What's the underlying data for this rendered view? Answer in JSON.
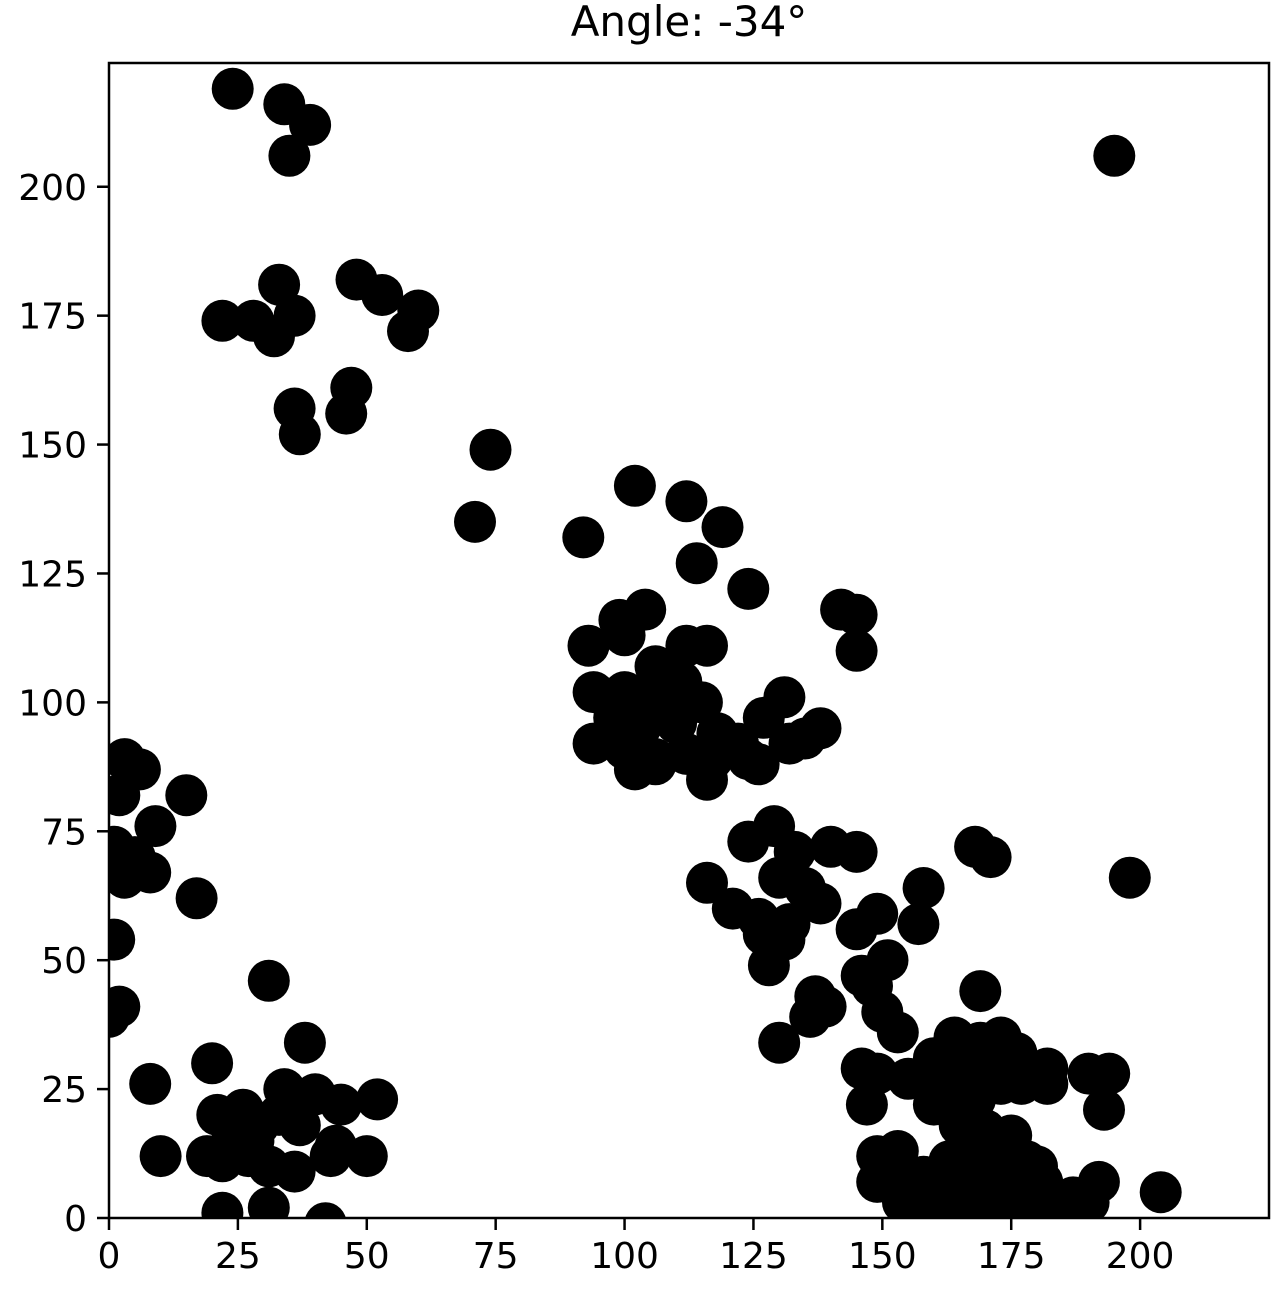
{
  "chart_data": {
    "type": "scatter",
    "title": "Angle: -34°",
    "xlabel": "",
    "ylabel": "",
    "xlim": [
      0,
      225
    ],
    "ylim": [
      0,
      224
    ],
    "xticks": [
      0,
      25,
      50,
      75,
      100,
      125,
      150,
      175,
      200
    ],
    "yticks": [
      0,
      25,
      50,
      75,
      100,
      125,
      150,
      175,
      200
    ],
    "grid": false,
    "legend": "none",
    "marker_color": "#000000",
    "points": [
      [
        24,
        219
      ],
      [
        34,
        216
      ],
      [
        39,
        212
      ],
      [
        35,
        206
      ],
      [
        195,
        206
      ],
      [
        48,
        182
      ],
      [
        33,
        181
      ],
      [
        53,
        179
      ],
      [
        60,
        176
      ],
      [
        22,
        174
      ],
      [
        28,
        174
      ],
      [
        36,
        175
      ],
      [
        32,
        171
      ],
      [
        58,
        172
      ],
      [
        47,
        161
      ],
      [
        36,
        157
      ],
      [
        46,
        156
      ],
      [
        37,
        152
      ],
      [
        74,
        149
      ],
      [
        71,
        135
      ],
      [
        102,
        142
      ],
      [
        112,
        139
      ],
      [
        119,
        134
      ],
      [
        92,
        132
      ],
      [
        114,
        127
      ],
      [
        124,
        122
      ],
      [
        104,
        118
      ],
      [
        99,
        116
      ],
      [
        142,
        118
      ],
      [
        145,
        117
      ],
      [
        93,
        111
      ],
      [
        100,
        113
      ],
      [
        112,
        111
      ],
      [
        116,
        111
      ],
      [
        145,
        110
      ],
      [
        106,
        107
      ],
      [
        111,
        104
      ],
      [
        94,
        102
      ],
      [
        100,
        102
      ],
      [
        104,
        101
      ],
      [
        108,
        98
      ],
      [
        115,
        100
      ],
      [
        131,
        101
      ],
      [
        98,
        97
      ],
      [
        103,
        95
      ],
      [
        110,
        96
      ],
      [
        118,
        94
      ],
      [
        122,
        92
      ],
      [
        127,
        97
      ],
      [
        138,
        95
      ],
      [
        135,
        93
      ],
      [
        132,
        92
      ],
      [
        94,
        92
      ],
      [
        100,
        91
      ],
      [
        106,
        89
      ],
      [
        112,
        90
      ],
      [
        117,
        89
      ],
      [
        124,
        89
      ],
      [
        126,
        88
      ],
      [
        102,
        87
      ],
      [
        106,
        88
      ],
      [
        116,
        85
      ],
      [
        3,
        89
      ],
      [
        6,
        87
      ],
      [
        2,
        82
      ],
      [
        15,
        82
      ],
      [
        9,
        76
      ],
      [
        1,
        72
      ],
      [
        5,
        70
      ],
      [
        8,
        67
      ],
      [
        3,
        66
      ],
      [
        17,
        62
      ],
      [
        129,
        76
      ],
      [
        124,
        73
      ],
      [
        133,
        71
      ],
      [
        140,
        72
      ],
      [
        145,
        71
      ],
      [
        168,
        72
      ],
      [
        171,
        70
      ],
      [
        198,
        66
      ],
      [
        116,
        65
      ],
      [
        130,
        66
      ],
      [
        135,
        64
      ],
      [
        158,
        64
      ],
      [
        121,
        60
      ],
      [
        138,
        61
      ],
      [
        126,
        58
      ],
      [
        132,
        57
      ],
      [
        149,
        59
      ],
      [
        145,
        56
      ],
      [
        127,
        55
      ],
      [
        131,
        54
      ],
      [
        157,
        57
      ],
      [
        1,
        54
      ],
      [
        128,
        49
      ],
      [
        146,
        47
      ],
      [
        151,
        50
      ],
      [
        148,
        45
      ],
      [
        150,
        40
      ],
      [
        169,
        44
      ],
      [
        137,
        43
      ],
      [
        139,
        41
      ],
      [
        136,
        39
      ],
      [
        153,
        36
      ],
      [
        2,
        41
      ],
      [
        0,
        39
      ],
      [
        31,
        46
      ],
      [
        38,
        34
      ],
      [
        130,
        34
      ],
      [
        164,
        35
      ],
      [
        169,
        34
      ],
      [
        173,
        35
      ],
      [
        176,
        32
      ],
      [
        160,
        31
      ],
      [
        166,
        30
      ],
      [
        170,
        29
      ],
      [
        182,
        29
      ],
      [
        146,
        29
      ],
      [
        149,
        28
      ],
      [
        155,
        27
      ],
      [
        162,
        28
      ],
      [
        168,
        27
      ],
      [
        173,
        26
      ],
      [
        177,
        26
      ],
      [
        182,
        26
      ],
      [
        190,
        28
      ],
      [
        194,
        28
      ],
      [
        8,
        26
      ],
      [
        20,
        30
      ],
      [
        34,
        25
      ],
      [
        40,
        24
      ],
      [
        45,
        22
      ],
      [
        52,
        23
      ],
      [
        147,
        22
      ],
      [
        160,
        22
      ],
      [
        164,
        21
      ],
      [
        168,
        23
      ],
      [
        193,
        21
      ],
      [
        21,
        20
      ],
      [
        26,
        21
      ],
      [
        29,
        18
      ],
      [
        33,
        20
      ],
      [
        37,
        18
      ],
      [
        24,
        16
      ],
      [
        28,
        15
      ],
      [
        44,
        14
      ],
      [
        43,
        12
      ],
      [
        50,
        12
      ],
      [
        10,
        12
      ],
      [
        19,
        12
      ],
      [
        22,
        11
      ],
      [
        27,
        12
      ],
      [
        31,
        10
      ],
      [
        36,
        9
      ],
      [
        165,
        18
      ],
      [
        170,
        17
      ],
      [
        175,
        16
      ],
      [
        167,
        13
      ],
      [
        172,
        12
      ],
      [
        163,
        11
      ],
      [
        168,
        10
      ],
      [
        178,
        11
      ],
      [
        180,
        10
      ],
      [
        149,
        12
      ],
      [
        153,
        13
      ],
      [
        149,
        7
      ],
      [
        154,
        7
      ],
      [
        158,
        8
      ],
      [
        162,
        7
      ],
      [
        166,
        8
      ],
      [
        170,
        7
      ],
      [
        174,
        8
      ],
      [
        178,
        6
      ],
      [
        181,
        7
      ],
      [
        192,
        7
      ],
      [
        204,
        5
      ],
      [
        187,
        4
      ],
      [
        190,
        3
      ],
      [
        22,
        1
      ],
      [
        31,
        2
      ],
      [
        42,
        -1
      ],
      [
        154,
        3
      ],
      [
        158,
        4
      ],
      [
        162,
        2
      ],
      [
        166,
        3
      ],
      [
        170,
        2
      ],
      [
        174,
        2
      ],
      [
        178,
        1
      ],
      [
        182,
        1
      ]
    ]
  }
}
